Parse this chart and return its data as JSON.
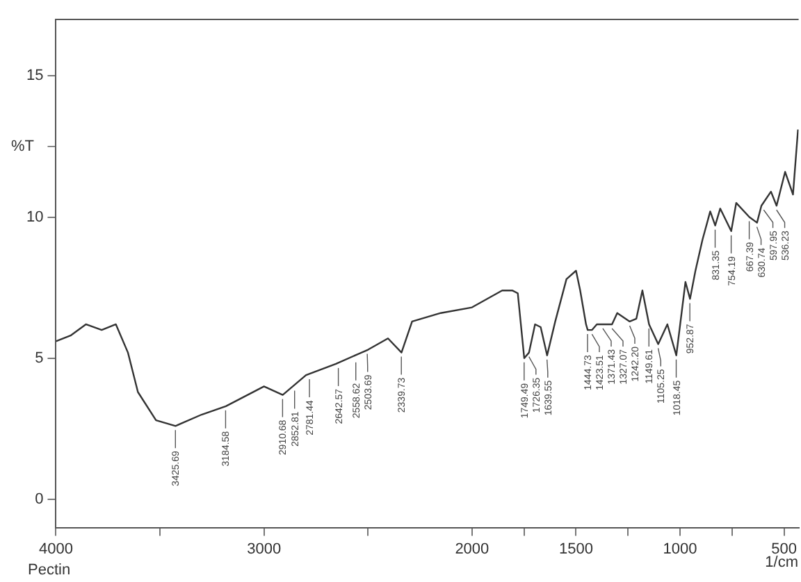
{
  "chart_data": {
    "type": "line",
    "xlabel": "1/cm",
    "ylabel": "%T",
    "xlim": [
      4000,
      430
    ],
    "ylim": [
      -1,
      17
    ],
    "xticks": [
      4000,
      {
        "value": 3500,
        "label": null
      },
      3000,
      {
        "value": 2500,
        "label": null
      },
      2000,
      {
        "value": 1750,
        "label": null
      },
      1500,
      {
        "value": 1250,
        "label": null
      },
      1000,
      {
        "value": 750,
        "label": null
      },
      500
    ],
    "yticks": [
      0,
      5,
      10,
      15
    ],
    "grid": false,
    "legend": false,
    "marker": "none",
    "line_style": "solid",
    "series": [
      {
        "color": "#333333",
        "x": [
          4000,
          3930,
          3856,
          3780,
          3712,
          3654,
          3606,
          3519,
          3425,
          3300,
          3183,
          3000,
          2910,
          2798,
          2654,
          2500,
          2404,
          2339,
          2288,
          2150,
          2000,
          1855,
          1807,
          1780,
          1749,
          1726,
          1697,
          1670,
          1639,
          1600,
          1546,
          1500,
          1480,
          1452,
          1444,
          1423,
          1400,
          1371,
          1327,
          1302,
          1242,
          1210,
          1181,
          1149,
          1105,
          1061,
          1018,
          974,
          952,
          926,
          892,
          855,
          831,
          807,
          754,
          730,
          667,
          630,
          609,
          563,
          536,
          495,
          457,
          433
        ],
        "values": [
          5.6,
          5.8,
          6.2,
          6.0,
          6.2,
          5.2,
          3.8,
          2.8,
          2.6,
          3.0,
          3.3,
          4.0,
          3.7,
          4.4,
          4.8,
          5.3,
          5.7,
          5.2,
          6.3,
          6.6,
          6.8,
          7.4,
          7.4,
          7.3,
          5.0,
          5.2,
          6.2,
          6.1,
          5.1,
          6.3,
          7.8,
          8.1,
          7.4,
          6.2,
          6.0,
          6.0,
          6.2,
          6.2,
          6.2,
          6.6,
          6.3,
          6.4,
          7.4,
          6.2,
          5.5,
          6.2,
          5.1,
          7.7,
          7.1,
          8.1,
          9.2,
          10.2,
          9.7,
          10.3,
          9.5,
          10.5,
          10.0,
          9.8,
          10.4,
          10.9,
          10.4,
          11.6,
          10.8,
          13.1
        ]
      }
    ],
    "annotations": [
      "Pectin",
      {
        "text": "3425.69",
        "x": 3425.69,
        "y": 2.6
      },
      {
        "text": "3184.58",
        "x": 3184.58,
        "y": 3.3
      },
      {
        "text": "2910.68",
        "x": 2910.68,
        "y": 3.7
      },
      {
        "text": "2852.81",
        "x": 2852.81,
        "y": 4.0
      },
      {
        "text": "2781.44",
        "x": 2781.44,
        "y": 4.4
      },
      {
        "text": "2642.57",
        "x": 2642.57,
        "y": 4.8
      },
      {
        "text": "2558.62",
        "x": 2558.62,
        "y": 5.0
      },
      {
        "text": "2503.69",
        "x": 2503.69,
        "y": 5.3
      },
      {
        "text": "2339.73",
        "x": 2339.73,
        "y": 5.2
      },
      {
        "text": "1749.49",
        "x": 1749.49,
        "y": 5.0
      },
      {
        "text": "1726.35",
        "x": 1726.35,
        "y": 5.2
      },
      {
        "text": "1639.55",
        "x": 1639.55,
        "y": 5.1
      },
      {
        "text": "1444.73",
        "x": 1444.73,
        "y": 6.0
      },
      {
        "text": "1423.51",
        "x": 1423.51,
        "y": 6.0
      },
      {
        "text": "1371.43",
        "x": 1371.43,
        "y": 6.2
      },
      {
        "text": "1327.07",
        "x": 1327.07,
        "y": 6.2
      },
      {
        "text": "1242.20",
        "x": 1242.2,
        "y": 6.3
      },
      {
        "text": "1149.61",
        "x": 1149.61,
        "y": 6.2
      },
      {
        "text": "1105.25",
        "x": 1105.25,
        "y": 5.5
      },
      {
        "text": "1018.45",
        "x": 1018.45,
        "y": 5.1
      },
      {
        "text": "952.87",
        "x": 952.87,
        "y": 7.1
      },
      {
        "text": "831.35",
        "x": 831.35,
        "y": 9.7
      },
      {
        "text": "754.19",
        "x": 754.19,
        "y": 9.5
      },
      {
        "text": "667.39",
        "x": 667.39,
        "y": 10.0
      },
      {
        "text": "630.74",
        "x": 630.74,
        "y": 9.8
      },
      {
        "text": "597.95",
        "x": 597.95,
        "y": 10.4
      },
      {
        "text": "536.23",
        "x": 536.23,
        "y": 10.4
      }
    ]
  }
}
